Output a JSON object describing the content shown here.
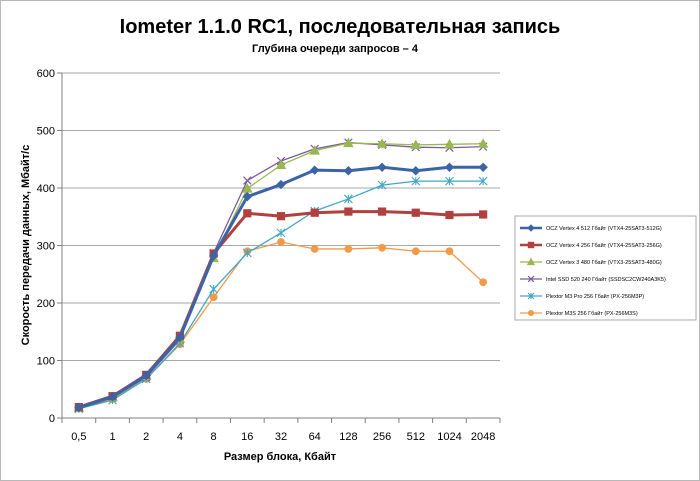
{
  "chart_data": {
    "type": "line",
    "title": "Iometer 1.1.0 RC1, последовательная запись",
    "subtitle": "Глубина очереди запросов – 4",
    "xlabel": "Размер блока, Кбайт",
    "ylabel": "Скорость передачи данных, Мбайт/с",
    "categories": [
      "0,5",
      "1",
      "2",
      "4",
      "8",
      "16",
      "32",
      "64",
      "128",
      "256",
      "512",
      "1024",
      "2048"
    ],
    "ylim": [
      0,
      600
    ],
    "yticks": [
      0,
      100,
      200,
      300,
      400,
      500,
      600
    ],
    "grid": true,
    "legend_position": "right",
    "series": [
      {
        "name": "OCZ Vertex 4 512 Гбайт (VTX4-25SAT3-512G)",
        "color": "#3b64a7",
        "marker": "diamond",
        "values": [
          18,
          37,
          74,
          140,
          282,
          385,
          406,
          431,
          430,
          436,
          430,
          436,
          436
        ]
      },
      {
        "name": "OCZ Vertex 4 256 Гбайт (VTX4-25SAT3-256G)",
        "color": "#b0413e",
        "marker": "square",
        "values": [
          19,
          38,
          75,
          143,
          286,
          356,
          351,
          357,
          359,
          359,
          357,
          353,
          354
        ]
      },
      {
        "name": "OCZ Vertex 3 480 Гбайт (VTX3-25SAT3-480G)",
        "color": "#98b84e",
        "marker": "triangle",
        "values": [
          18,
          36,
          73,
          138,
          278,
          399,
          440,
          465,
          478,
          477,
          475,
          476,
          477
        ]
      },
      {
        "name": "Intel SSD 520 240 Гбайт (SSDSC2CW240A3K5)",
        "color": "#7a5b9c",
        "marker": "x",
        "values": [
          17,
          35,
          71,
          136,
          287,
          413,
          447,
          468,
          479,
          475,
          471,
          470,
          472
        ]
      },
      {
        "name": "Plextor M3 Pro 256 Гбайт (PX-256M3P)",
        "color": "#42a6c5",
        "marker": "star",
        "values": [
          16,
          31,
          68,
          130,
          224,
          287,
          322,
          360,
          381,
          405,
          412,
          412,
          412
        ]
      },
      {
        "name": "Plextor M3S 256 Гбайт (PX-256M3S)",
        "color": "#f29a48",
        "marker": "circle",
        "values": [
          17,
          33,
          68,
          128,
          210,
          290,
          306,
          294,
          294,
          296,
          290,
          290,
          236
        ]
      }
    ]
  }
}
